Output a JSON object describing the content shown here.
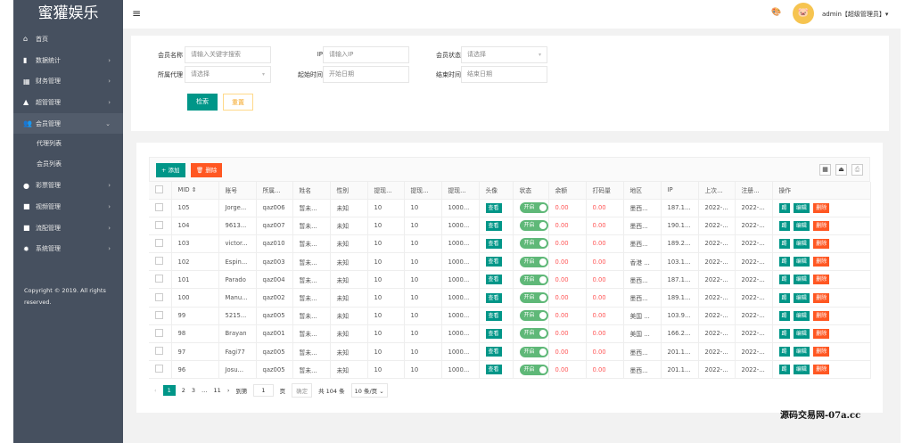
{
  "app": {
    "logo": "蜜獾娱乐",
    "copyright": "Copyright © 2019. All rights reserved."
  },
  "sidebar": {
    "items": [
      {
        "label": "首页",
        "icon": "home-icon",
        "arrow": ""
      },
      {
        "label": "数据统计",
        "icon": "bar-chart-icon",
        "arrow": "›"
      },
      {
        "label": "财务管理",
        "icon": "bank-icon",
        "arrow": "›"
      },
      {
        "label": "超管管理",
        "icon": "user-icon",
        "arrow": "›"
      },
      {
        "label": "会员管理",
        "icon": "users-icon",
        "arrow": "⌄",
        "active": true
      },
      {
        "label": "彩票管理",
        "icon": "gamepad-icon",
        "arrow": "›"
      },
      {
        "label": "视频管理",
        "icon": "video-icon",
        "arrow": "›"
      },
      {
        "label": "流配管理",
        "icon": "video-icon",
        "arrow": "›"
      },
      {
        "label": "系统管理",
        "icon": "gear-icon",
        "arrow": "›"
      }
    ],
    "sub_items": [
      "代理列表",
      "会员列表"
    ]
  },
  "header": {
    "user": "admin【超级管理员】▾"
  },
  "search": {
    "member_name_label": "会员名称",
    "member_name_placeholder": "请输入关键字搜索",
    "ip_label": "IP",
    "ip_placeholder": "请输入IP",
    "status_label": "会员状态",
    "status_value": "请选择",
    "agent_label": "所属代理",
    "agent_value": "请选择",
    "start_label": "起始时间",
    "start_placeholder": "开始日期",
    "end_label": "结束时间",
    "end_placeholder": "结束日期",
    "search_btn": "检索",
    "reset_btn": "重置"
  },
  "toolbar": {
    "add": "+ 添加",
    "delete": "🗑 删除"
  },
  "table": {
    "columns": [
      "MID ⇕",
      "账号",
      "所属...",
      "姓名",
      "性别",
      "提现...",
      "提现...",
      "提现...",
      "头像",
      "状态",
      "余额",
      "打码量",
      "地区",
      "IP",
      "上次...",
      "注册...",
      "操作"
    ],
    "view_label": "查看",
    "switch_label": "开启",
    "kick_label": "踢",
    "edit_label": "编辑",
    "del_label": "删除",
    "rows": [
      [
        "105",
        "Jorge...",
        "qaz006",
        "暂未...",
        "未知",
        "10",
        "10",
        "1000...",
        "0.00",
        "0.00",
        "墨西...",
        "187.1...",
        "2022-...",
        "2022-..."
      ],
      [
        "104",
        "9613...",
        "qaz007",
        "暂未...",
        "未知",
        "10",
        "10",
        "1000...",
        "0.00",
        "0.00",
        "墨西...",
        "190.1...",
        "2022-...",
        "2022-..."
      ],
      [
        "103",
        "victor...",
        "qaz010",
        "暂未...",
        "未知",
        "10",
        "10",
        "1000...",
        "0.00",
        "0.00",
        "墨西...",
        "189.2...",
        "2022-...",
        "2022-..."
      ],
      [
        "102",
        "Espin...",
        "qaz003",
        "暂未...",
        "未知",
        "10",
        "10",
        "1000...",
        "0.00",
        "0.00",
        "香港 ...",
        "103.1...",
        "2022-...",
        "2022-..."
      ],
      [
        "101",
        "Parado",
        "qaz004",
        "暂未...",
        "未知",
        "10",
        "10",
        "1000...",
        "0.00",
        "0.00",
        "墨西...",
        "187.1...",
        "2022-...",
        "2022-..."
      ],
      [
        "100",
        "Manu...",
        "qaz002",
        "暂未...",
        "未知",
        "10",
        "10",
        "1000...",
        "0.00",
        "0.00",
        "墨西...",
        "189.1...",
        "2022-...",
        "2022-..."
      ],
      [
        "99",
        "5215...",
        "qaz005",
        "暂未...",
        "未知",
        "10",
        "10",
        "1000...",
        "0.00",
        "0.00",
        "美国 ...",
        "103.9...",
        "2022-...",
        "2022-..."
      ],
      [
        "98",
        "Brayan",
        "qaz001",
        "暂未...",
        "未知",
        "10",
        "10",
        "1000...",
        "0.00",
        "0.00",
        "美国 ...",
        "166.2...",
        "2022-...",
        "2022-..."
      ],
      [
        "97",
        "Fagi77",
        "qaz005",
        "暂未...",
        "未知",
        "10",
        "10",
        "1000...",
        "0.00",
        "0.00",
        "墨西...",
        "201.1...",
        "2022-...",
        "2022-..."
      ],
      [
        "96",
        "Josu...",
        "qaz005",
        "暂未...",
        "未知",
        "10",
        "10",
        "1000...",
        "0.00",
        "0.00",
        "墨西...",
        "201.1...",
        "2022-...",
        "2022-..."
      ]
    ]
  },
  "pager": {
    "prev": "‹",
    "pages": [
      "1",
      "2",
      "3",
      "…",
      "11"
    ],
    "next": "›",
    "goto": "到第",
    "page_input": "1",
    "page_unit": "页",
    "confirm": "确定",
    "total": "共 104 条",
    "per_page": "10 条/页 ⌄"
  },
  "watermark": "源码交易网-07a.cc",
  "colors": {
    "sidebar": "#46505f",
    "primary": "#009688",
    "danger": "#ff5722",
    "switch": "#5fb878",
    "amount": "#ff5a5a"
  }
}
